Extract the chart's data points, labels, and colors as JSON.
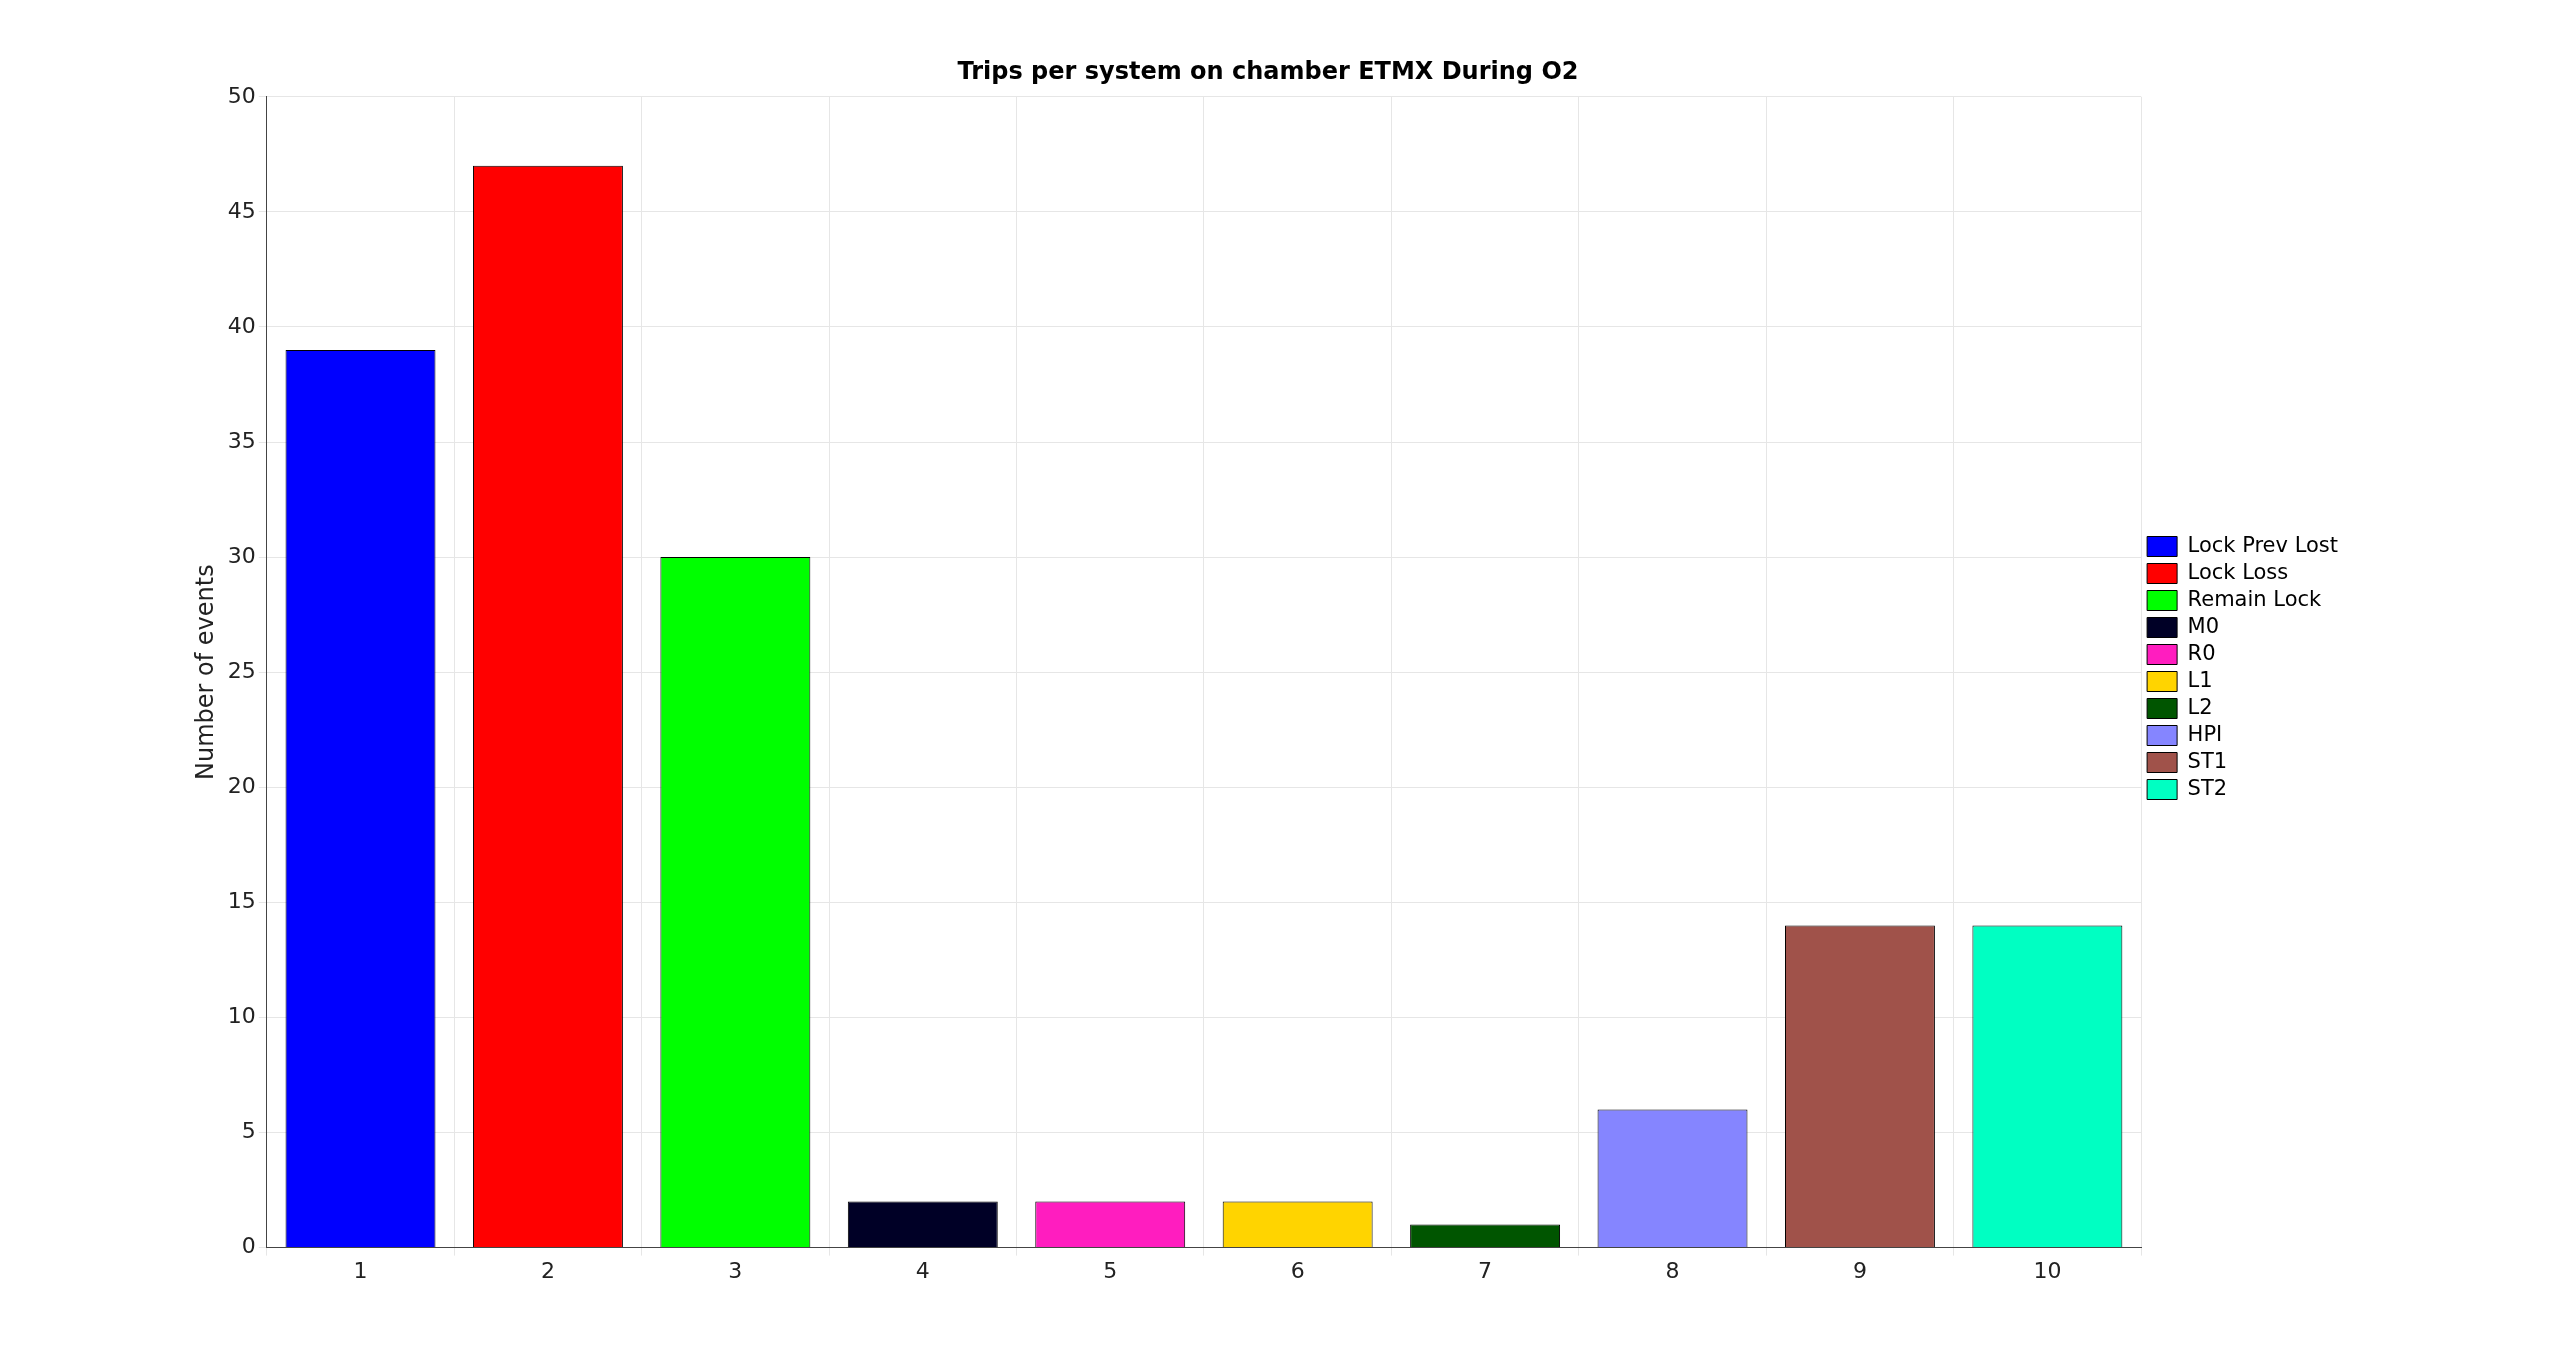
{
  "chart_data": {
    "type": "bar",
    "title": "Trips per system on chamber ETMX During O2",
    "ylabel": "Number of events",
    "categories": [
      "1",
      "2",
      "3",
      "4",
      "5",
      "6",
      "7",
      "8",
      "9",
      "10"
    ],
    "series": [
      {
        "name": "Lock Prev Lost",
        "color": "#0000ff",
        "values": [
          39,
          null,
          null,
          null,
          null,
          null,
          null,
          null,
          null,
          null
        ]
      },
      {
        "name": "Lock Loss",
        "color": "#ff0000",
        "values": [
          null,
          47,
          null,
          null,
          null,
          null,
          null,
          null,
          null,
          null
        ]
      },
      {
        "name": "Remain Lock",
        "color": "#00ff00",
        "values": [
          null,
          null,
          30,
          null,
          null,
          null,
          null,
          null,
          null,
          null
        ]
      },
      {
        "name": "M0",
        "color": "#000026",
        "values": [
          null,
          null,
          null,
          2,
          null,
          null,
          null,
          null,
          null,
          null
        ]
      },
      {
        "name": "R0",
        "color": "#ff1dbf",
        "values": [
          null,
          null,
          null,
          null,
          2,
          null,
          null,
          null,
          null,
          null
        ]
      },
      {
        "name": "L1",
        "color": "#ffd400",
        "values": [
          null,
          null,
          null,
          null,
          null,
          2,
          null,
          null,
          null,
          null
        ]
      },
      {
        "name": "L2",
        "color": "#005500",
        "values": [
          null,
          null,
          null,
          null,
          null,
          null,
          1,
          null,
          null,
          null
        ]
      },
      {
        "name": "HPI",
        "color": "#8585ff",
        "values": [
          null,
          null,
          null,
          null,
          null,
          null,
          null,
          6,
          null,
          null
        ]
      },
      {
        "name": "ST1",
        "color": "#a0524a",
        "values": [
          null,
          null,
          null,
          null,
          null,
          null,
          null,
          null,
          14,
          null
        ]
      },
      {
        "name": "ST2",
        "color": "#00ffc2",
        "values": [
          null,
          null,
          null,
          null,
          null,
          null,
          null,
          null,
          null,
          14
        ]
      }
    ],
    "ylim": [
      0,
      50
    ],
    "yticks": [
      0,
      5,
      10,
      15,
      20,
      25,
      30,
      35,
      40,
      45,
      50
    ],
    "grid": true,
    "legend": "right"
  }
}
